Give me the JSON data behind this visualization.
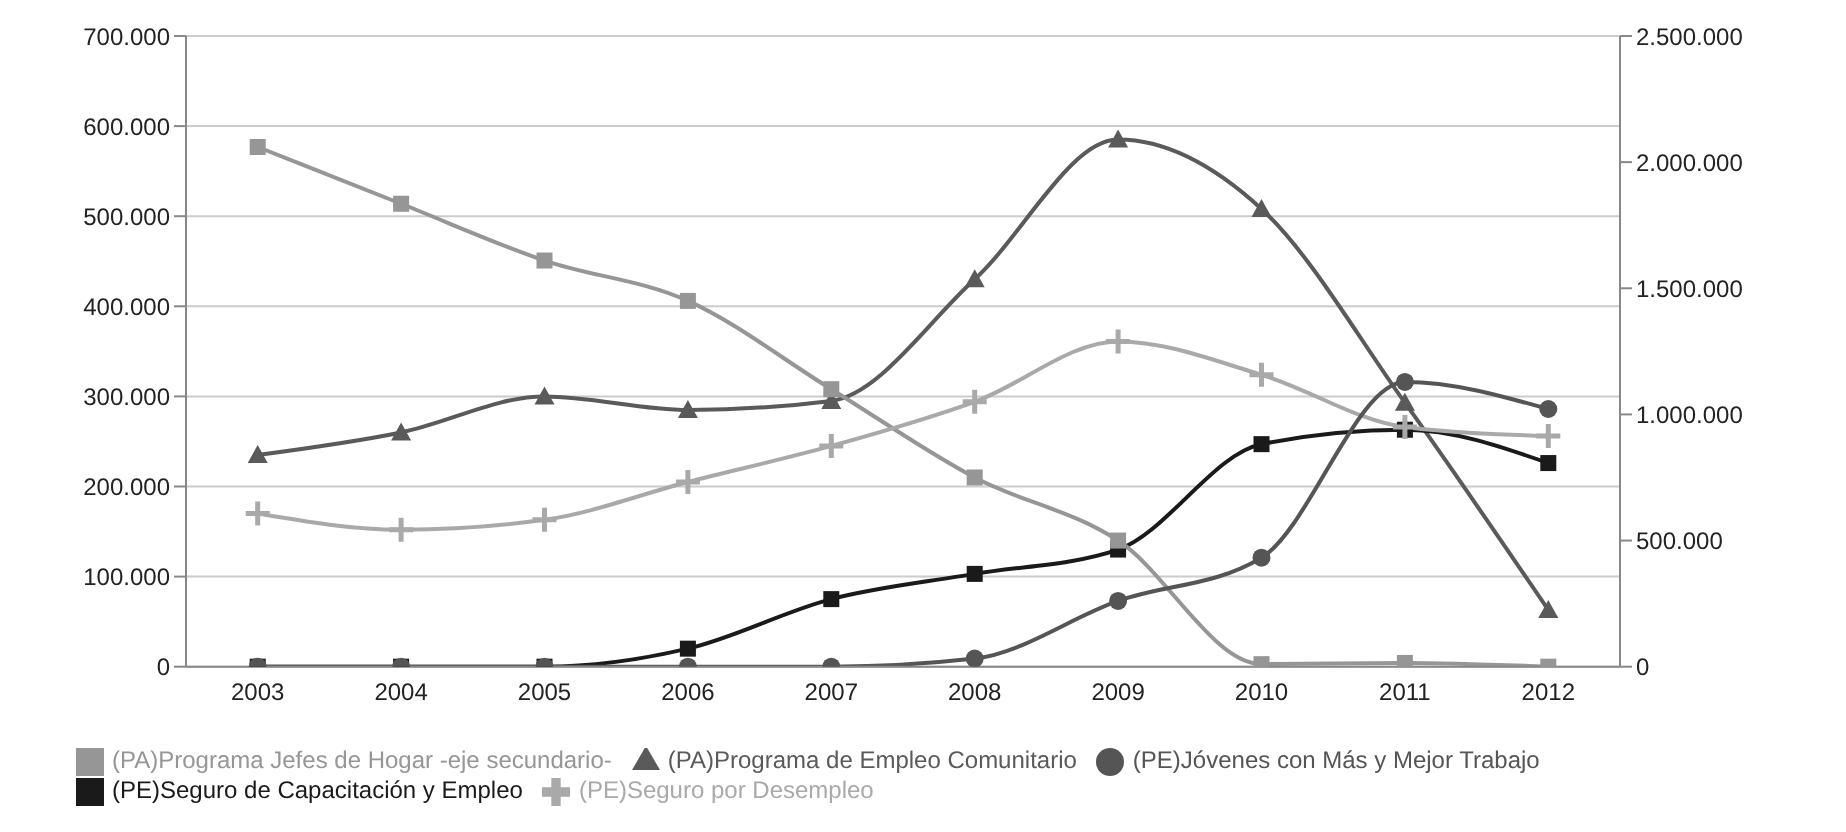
{
  "chart_data": {
    "type": "line",
    "categories": [
      "2003",
      "2004",
      "2005",
      "2006",
      "2007",
      "2008",
      "2009",
      "2010",
      "2011",
      "2012"
    ],
    "series": [
      {
        "name": "(PA)Programa de Empleo Comunitario",
        "color": "#5a5a5a",
        "marker": "triangle",
        "values": [
          235000,
          260000,
          300000,
          285000,
          295000,
          430000,
          585000,
          508000,
          293000,
          63000
        ]
      },
      {
        "name": "(PE)Seguro de Capacitación y Empleo",
        "color": "#1a1a1a",
        "marker": "square",
        "values": [
          0,
          0,
          0,
          20000,
          75000,
          103000,
          130000,
          247000,
          263000,
          226000
        ]
      },
      {
        "name": "(PA)Programa Jefes de Hogar -eje secundario-",
        "color": "#969696",
        "marker": "square",
        "axis": "y2",
        "values": [
          2060000,
          1835000,
          1610000,
          1450000,
          1100000,
          750000,
          500000,
          10000,
          15000,
          0
        ]
      },
      {
        "name": "(PE)Seguro por Desempleo",
        "color": "#a9a9a9",
        "marker": "cross",
        "values": [
          170000,
          152000,
          163000,
          205000,
          245000,
          294000,
          361000,
          324000,
          266000,
          256000
        ]
      },
      {
        "name": "(PE)Jóvenes con Más y Mejor Trabajo",
        "color": "#555555",
        "marker": "circle",
        "values": [
          0,
          0,
          0,
          0,
          0,
          9000,
          73000,
          121000,
          316000,
          286000
        ]
      }
    ],
    "ylim": [
      0,
      700000
    ],
    "yticks": [
      0,
      {
        "value": 100000,
        "label": "100.000"
      },
      {
        "value": 200000,
        "label": "200.000"
      },
      {
        "value": 300000,
        "label": "300.000"
      },
      {
        "value": 400000,
        "label": "400.000"
      },
      {
        "value": 500000,
        "label": "500.000"
      },
      {
        "value": 600000,
        "label": "600.000"
      },
      {
        "value": 700000,
        "label": "700.000"
      }
    ],
    "y2lim": [
      0,
      2500000
    ],
    "y2ticks": [
      0,
      {
        "value": 500000,
        "label": "500.000"
      },
      {
        "value": 1000000,
        "label": "1.000.000"
      },
      {
        "value": 1500000,
        "label": "1.500.000"
      },
      {
        "value": 2000000,
        "label": "2.000.000"
      },
      {
        "value": 2500000,
        "label": "2.500.000"
      }
    ],
    "grid": "y",
    "legend": "bottom",
    "line_style": "solid"
  }
}
